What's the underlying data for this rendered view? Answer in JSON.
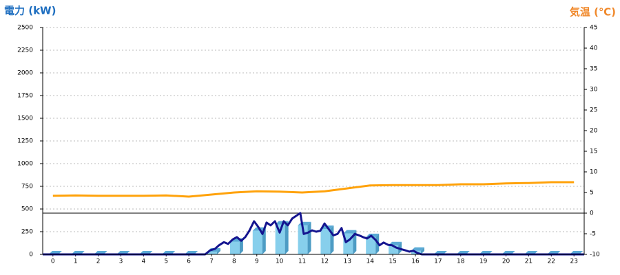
{
  "chart_data": {
    "type": "combo",
    "title": "電力 (kW)",
    "y2_title": "気温 (℃)",
    "x": [
      0,
      1,
      2,
      3,
      4,
      5,
      6,
      7,
      8,
      9,
      10,
      11,
      12,
      13,
      14,
      15,
      16,
      17,
      18,
      19,
      20,
      21,
      22,
      23
    ],
    "xlim": [
      -0.45,
      23.45
    ],
    "ylim": [
      0,
      2500
    ],
    "yticks": [
      0,
      250,
      500,
      750,
      1000,
      1250,
      1500,
      1750,
      2000,
      2250,
      2500
    ],
    "y2lim": [
      -10,
      45
    ],
    "y2ticks": [
      -10,
      -5,
      0,
      5,
      10,
      15,
      20,
      25,
      30,
      35,
      40,
      45
    ],
    "grid": true,
    "series": [
      {
        "type": "bar",
        "color": "#87cfec",
        "values": [
          0,
          0,
          0,
          0,
          0,
          0,
          0,
          30,
          140,
          260,
          330,
          320,
          280,
          230,
          190,
          100,
          40,
          0,
          0,
          0,
          0,
          0,
          0,
          0
        ]
      },
      {
        "type": "line",
        "color": "#14148f",
        "x": [
          -0.45,
          6.72,
          6.94,
          7.15,
          7.33,
          7.55,
          7.73,
          7.94,
          8.12,
          8.31,
          8.49,
          8.67,
          8.88,
          9.07,
          9.25,
          9.43,
          9.61,
          9.8,
          10.01,
          10.19,
          10.37,
          10.56,
          10.77,
          10.92,
          11.07,
          11.26,
          11.44,
          11.62,
          11.8,
          11.99,
          12.17,
          12.38,
          12.56,
          12.74,
          12.93,
          13.11,
          13.33,
          13.51,
          13.69,
          13.87,
          14.05,
          14.24,
          14.42,
          14.6,
          14.79,
          14.97,
          15.15,
          15.33,
          15.55,
          15.73,
          15.91,
          16.09,
          16.28,
          23.45
        ],
        "values": [
          0,
          0,
          45,
          60,
          100,
          135,
          115,
          165,
          190,
          150,
          190,
          260,
          365,
          300,
          225,
          350,
          320,
          365,
          240,
          365,
          320,
          395,
          430,
          455,
          225,
          240,
          265,
          250,
          260,
          340,
          280,
          210,
          225,
          290,
          135,
          165,
          225,
          210,
          190,
          175,
          205,
          160,
          100,
          130,
          105,
          100,
          75,
          60,
          45,
          30,
          40,
          15,
          0,
          0
        ]
      },
      {
        "type": "line",
        "axis": "y2",
        "color": "#ffa20a",
        "values": [
          4.2,
          4.3,
          4.2,
          4.2,
          4.2,
          4.3,
          4.0,
          4.5,
          5.0,
          5.3,
          5.2,
          5.0,
          5.3,
          6.0,
          6.7,
          6.8,
          6.8,
          6.8,
          7.0,
          7.0,
          7.2,
          7.3,
          7.5,
          7.5
        ]
      }
    ]
  }
}
